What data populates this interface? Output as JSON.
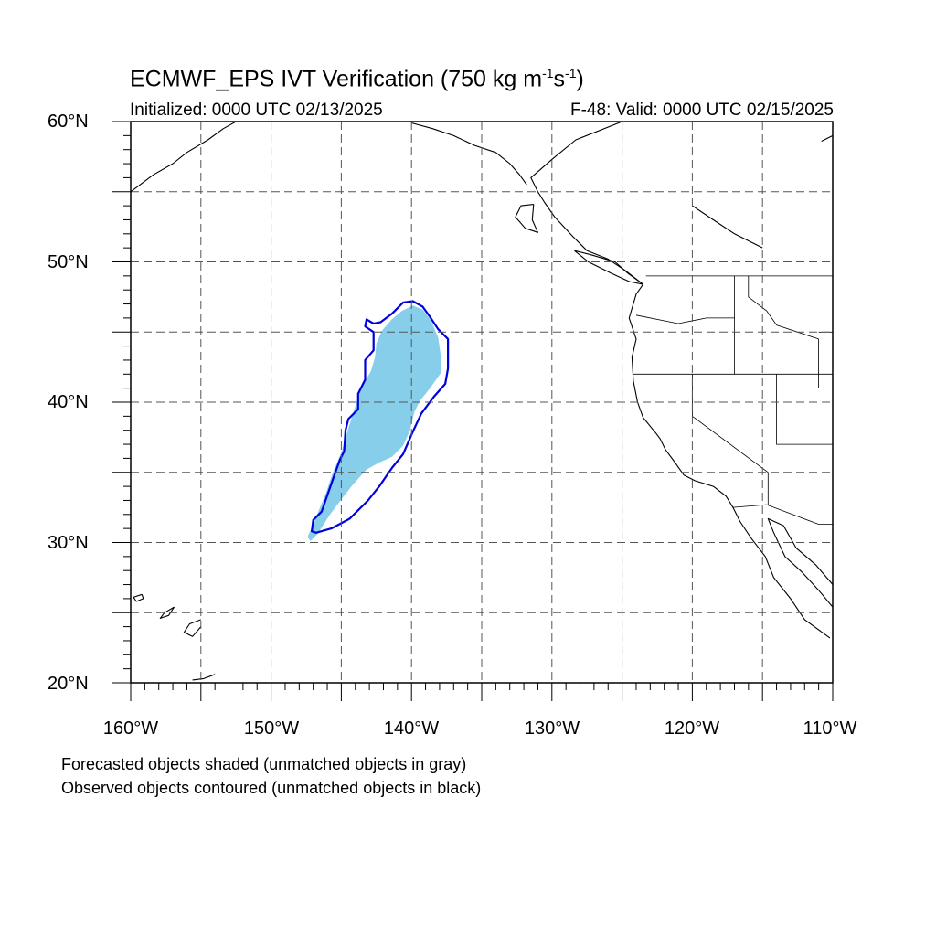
{
  "title": {
    "prefix": "ECMWF_EPS IVT Verification (750 kg m",
    "exp1": "-1",
    "mid": "s",
    "exp2": "-1",
    "suffix": ")"
  },
  "subtitle_left": "Initialized: 0000 UTC 02/13/2025",
  "subtitle_right": "F-48: Valid: 0000 UTC 02/15/2025",
  "lat_labels": [
    "60°N",
    "50°N",
    "40°N",
    "30°N",
    "20°N"
  ],
  "lon_labels": [
    "160°W",
    "150°W",
    "140°W",
    "130°W",
    "120°W",
    "110°W"
  ],
  "notes": [
    "Forecasted objects shaded (unmatched objects in gray)",
    "Observed objects contoured (unmatched objects in black)"
  ],
  "map": {
    "lon_range": [
      -160,
      -110
    ],
    "lat_range": [
      20,
      60
    ],
    "grid_spacing_deg": 5,
    "grid_style": "dashed"
  },
  "objects": {
    "forecast_color": "#87ceeb",
    "observed_color": "#0000dd",
    "forecast_object": [
      [
        -147.2,
        30.1
      ],
      [
        -146.7,
        30.6
      ],
      [
        -145.8,
        32.0
      ],
      [
        -144.9,
        33.2
      ],
      [
        -144.2,
        34.1
      ],
      [
        -143.2,
        35.2
      ],
      [
        -142.3,
        35.7
      ],
      [
        -141.4,
        36.1
      ],
      [
        -140.6,
        36.9
      ],
      [
        -140.1,
        38.0
      ],
      [
        -139.8,
        39.3
      ],
      [
        -139.4,
        40.1
      ],
      [
        -138.6,
        41.1
      ],
      [
        -137.9,
        42.1
      ],
      [
        -137.9,
        43.2
      ],
      [
        -138.1,
        44.6
      ],
      [
        -138.6,
        45.8
      ],
      [
        -139.2,
        46.6
      ],
      [
        -139.9,
        46.9
      ],
      [
        -140.7,
        46.5
      ],
      [
        -141.4,
        45.9
      ],
      [
        -142.1,
        45.1
      ],
      [
        -142.5,
        44.2
      ],
      [
        -142.6,
        43.2
      ],
      [
        -142.9,
        42.2
      ],
      [
        -143.6,
        41.0
      ],
      [
        -144.1,
        39.4
      ],
      [
        -144.6,
        37.8
      ],
      [
        -145.0,
        36.4
      ],
      [
        -145.6,
        35.0
      ],
      [
        -146.1,
        33.5
      ],
      [
        -146.6,
        32.3
      ],
      [
        -147.0,
        31.3
      ],
      [
        -147.4,
        30.4
      ]
    ],
    "observed_object": [
      [
        -146.8,
        30.7
      ],
      [
        -145.7,
        31.0
      ],
      [
        -144.4,
        31.7
      ],
      [
        -143.1,
        33.0
      ],
      [
        -142.3,
        34.0
      ],
      [
        -141.4,
        35.3
      ],
      [
        -140.6,
        36.3
      ],
      [
        -139.9,
        37.9
      ],
      [
        -139.3,
        39.2
      ],
      [
        -138.4,
        40.4
      ],
      [
        -137.6,
        41.3
      ],
      [
        -137.4,
        42.4
      ],
      [
        -137.4,
        44.5
      ],
      [
        -138.1,
        45.2
      ],
      [
        -138.7,
        46.1
      ],
      [
        -139.2,
        46.8
      ],
      [
        -139.9,
        47.2
      ],
      [
        -140.6,
        47.1
      ],
      [
        -141.4,
        46.3
      ],
      [
        -142.2,
        45.7
      ],
      [
        -142.7,
        45.6
      ],
      [
        -143.2,
        45.9
      ],
      [
        -143.3,
        45.4
      ],
      [
        -142.7,
        45.0
      ],
      [
        -142.7,
        43.7
      ],
      [
        -143.3,
        43.0
      ],
      [
        -143.3,
        41.6
      ],
      [
        -143.8,
        40.6
      ],
      [
        -143.8,
        39.5
      ],
      [
        -144.5,
        38.8
      ],
      [
        -144.7,
        38.0
      ],
      [
        -144.8,
        36.5
      ],
      [
        -145.1,
        35.9
      ],
      [
        -145.6,
        34.5
      ],
      [
        -146.4,
        32.2
      ],
      [
        -147.0,
        31.6
      ],
      [
        -147.1,
        30.8
      ]
    ]
  },
  "coastlines": [
    [
      [
        -125.0,
        60.0
      ],
      [
        -128.3,
        58.7
      ],
      [
        -130.0,
        57.3
      ],
      [
        -131.5,
        56.0
      ],
      [
        -131.0,
        55.0
      ],
      [
        -130.5,
        54.2
      ],
      [
        -129.8,
        53.2
      ],
      [
        -128.5,
        51.8
      ],
      [
        -127.5,
        50.8
      ],
      [
        -126.0,
        50.2
      ],
      [
        -124.8,
        49.4
      ],
      [
        -123.5,
        48.4
      ],
      [
        -124.0,
        47.7
      ],
      [
        -124.5,
        46.0
      ],
      [
        -124.0,
        44.5
      ],
      [
        -124.3,
        43.2
      ],
      [
        -124.2,
        41.5
      ],
      [
        -123.9,
        40.0
      ],
      [
        -123.5,
        38.9
      ],
      [
        -122.6,
        37.8
      ],
      [
        -122.3,
        37.4
      ],
      [
        -121.9,
        36.6
      ],
      [
        -121.3,
        35.8
      ],
      [
        -120.6,
        34.8
      ],
      [
        -119.8,
        34.4
      ],
      [
        -118.5,
        34.0
      ],
      [
        -117.6,
        33.3
      ],
      [
        -117.1,
        32.5
      ],
      [
        -116.6,
        31.5
      ],
      [
        -115.8,
        30.3
      ],
      [
        -114.8,
        29.0
      ],
      [
        -114.2,
        27.5
      ],
      [
        -113.0,
        26.0
      ],
      [
        -112.0,
        24.5
      ],
      [
        -110.2,
        23.2
      ]
    ],
    [
      [
        -110.0,
        27.0
      ],
      [
        -111.2,
        28.4
      ],
      [
        -112.6,
        29.6
      ],
      [
        -113.5,
        31.2
      ],
      [
        -114.6,
        31.7
      ],
      [
        -114.2,
        30.7
      ],
      [
        -113.4,
        29.0
      ],
      [
        -112.2,
        27.9
      ],
      [
        -111.0,
        26.6
      ],
      [
        -110.0,
        25.4
      ]
    ],
    [
      [
        -160.0,
        55.0
      ],
      [
        -158.4,
        56.2
      ],
      [
        -157.0,
        57.0
      ],
      [
        -156.0,
        57.8
      ],
      [
        -154.5,
        58.7
      ],
      [
        -153.4,
        59.5
      ],
      [
        -152.5,
        60.0
      ]
    ],
    [
      [
        -140.0,
        59.9
      ],
      [
        -138.5,
        59.5
      ],
      [
        -137.0,
        59.0
      ],
      [
        -135.5,
        58.3
      ],
      [
        -134.0,
        57.8
      ],
      [
        -133.0,
        57.0
      ],
      [
        -132.3,
        56.2
      ],
      [
        -131.8,
        55.5
      ]
    ],
    [
      [
        -131.3,
        54.1
      ],
      [
        -132.2,
        54.0
      ],
      [
        -132.6,
        53.2
      ],
      [
        -131.9,
        52.4
      ],
      [
        -131.0,
        52.1
      ],
      [
        -131.4,
        53.0
      ],
      [
        -131.3,
        54.1
      ]
    ],
    [
      [
        -128.4,
        50.8
      ],
      [
        -127.2,
        50.5
      ],
      [
        -125.5,
        50.0
      ],
      [
        -124.6,
        49.2
      ],
      [
        -123.5,
        48.4
      ],
      [
        -124.5,
        48.6
      ],
      [
        -125.8,
        49.2
      ],
      [
        -127.4,
        50.0
      ],
      [
        -128.4,
        50.8
      ]
    ],
    [
      [
        -155.0,
        24.5
      ],
      [
        -155.8,
        24.2
      ],
      [
        -156.2,
        23.6
      ],
      [
        -155.6,
        23.3
      ],
      [
        -155.0,
        24.0
      ]
    ],
    [
      [
        -156.9,
        25.4
      ],
      [
        -157.6,
        25.0
      ],
      [
        -157.9,
        24.6
      ],
      [
        -157.3,
        24.8
      ],
      [
        -156.9,
        25.4
      ]
    ],
    [
      [
        -159.2,
        26.3
      ],
      [
        -159.8,
        26.1
      ],
      [
        -159.6,
        25.8
      ],
      [
        -159.1,
        26.0
      ],
      [
        -159.2,
        26.3
      ]
    ],
    [
      [
        -154.0,
        20.6
      ],
      [
        -154.8,
        20.3
      ],
      [
        -155.6,
        20.2
      ]
    ],
    [
      [
        -110.0,
        59.0
      ],
      [
        -110.8,
        58.6
      ]
    ],
    [
      [
        -120.0,
        54.0
      ],
      [
        -118.5,
        53.0
      ],
      [
        -117.0,
        52.0
      ],
      [
        -115.0,
        51.0
      ]
    ]
  ],
  "borders": [
    [
      [
        -123.3,
        49.0
      ],
      [
        -110.0,
        49.0
      ]
    ],
    [
      [
        -124.2,
        42.0
      ],
      [
        -110.0,
        42.0
      ]
    ],
    [
      [
        -124.0,
        46.2
      ],
      [
        -121.0,
        45.6
      ],
      [
        -119.0,
        46.0
      ],
      [
        -117.0,
        46.0
      ]
    ],
    [
      [
        -117.0,
        49.0
      ],
      [
        -117.0,
        42.0
      ]
    ],
    [
      [
        -116.0,
        49.0
      ],
      [
        -116.0,
        47.5
      ],
      [
        -114.7,
        46.5
      ],
      [
        -114.0,
        45.5
      ],
      [
        -111.0,
        44.5
      ]
    ],
    [
      [
        -120.0,
        42.0
      ],
      [
        -120.0,
        39.0
      ],
      [
        -114.6,
        35.0
      ],
      [
        -114.6,
        32.7
      ]
    ],
    [
      [
        -114.0,
        42.0
      ],
      [
        -114.0,
        37.0
      ],
      [
        -110.0,
        37.0
      ]
    ],
    [
      [
        -117.1,
        32.5
      ],
      [
        -114.7,
        32.7
      ],
      [
        -111.0,
        31.3
      ],
      [
        -110.0,
        31.3
      ]
    ],
    [
      [
        -111.0,
        45.0
      ],
      [
        -110.0,
        45.0
      ]
    ],
    [
      [
        -111.0,
        44.5
      ],
      [
        -111.0,
        41.0
      ],
      [
        -110.0,
        41.0
      ]
    ]
  ]
}
